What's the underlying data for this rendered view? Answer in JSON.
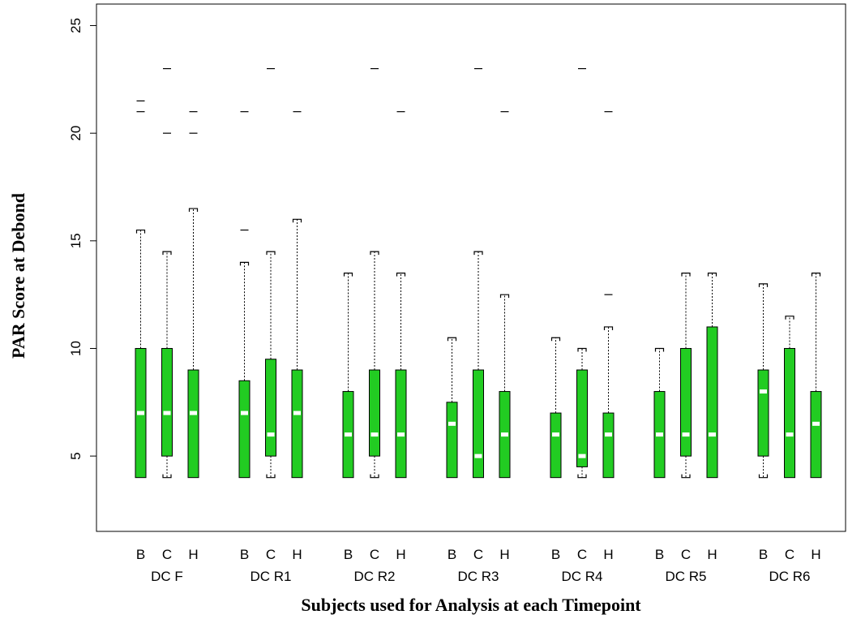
{
  "chart_data": {
    "type": "boxplot",
    "xlabel": "Subjects used for Analysis at each Timepoint",
    "ylabel": "PAR Score at Debond",
    "ylim": [
      1.5,
      26
    ],
    "yticks": [
      5,
      10,
      15,
      20,
      25
    ],
    "subgroups": [
      "B",
      "C",
      "H"
    ],
    "box_color": "#22cc22",
    "median_color": "#ffffff",
    "groups": [
      {
        "label": "DC F",
        "boxes": [
          {
            "sub": "B",
            "q1": 4,
            "median": 7,
            "q3": 10,
            "whisker_low": 4,
            "whisker_high": 15.5,
            "outliers": [
              21,
              21.5
            ]
          },
          {
            "sub": "C",
            "q1": 5,
            "median": 7,
            "q3": 10,
            "whisker_low": 4,
            "whisker_high": 14.5,
            "outliers": [
              20,
              23
            ]
          },
          {
            "sub": "H",
            "q1": 4,
            "median": 7,
            "q3": 9,
            "whisker_low": 4,
            "whisker_high": 16.5,
            "outliers": [
              20,
              21
            ]
          }
        ]
      },
      {
        "label": "DC R1",
        "boxes": [
          {
            "sub": "B",
            "q1": 4,
            "median": 7,
            "q3": 8.5,
            "whisker_low": 4,
            "whisker_high": 14,
            "outliers": [
              15.5,
              21
            ]
          },
          {
            "sub": "C",
            "q1": 5,
            "median": 6,
            "q3": 9.5,
            "whisker_low": 4,
            "whisker_high": 14.5,
            "outliers": [
              23
            ]
          },
          {
            "sub": "H",
            "q1": 4,
            "median": 7,
            "q3": 9,
            "whisker_low": 4,
            "whisker_high": 16,
            "outliers": [
              21
            ]
          }
        ]
      },
      {
        "label": "DC R2",
        "boxes": [
          {
            "sub": "B",
            "q1": 4,
            "median": 6,
            "q3": 8,
            "whisker_low": 4,
            "whisker_high": 13.5,
            "outliers": []
          },
          {
            "sub": "C",
            "q1": 5,
            "median": 6,
            "q3": 9,
            "whisker_low": 4,
            "whisker_high": 14.5,
            "outliers": [
              23
            ]
          },
          {
            "sub": "H",
            "q1": 4,
            "median": 6,
            "q3": 9,
            "whisker_low": 4,
            "whisker_high": 13.5,
            "outliers": [
              21
            ]
          }
        ]
      },
      {
        "label": "DC R3",
        "boxes": [
          {
            "sub": "B",
            "q1": 4,
            "median": 6.5,
            "q3": 7.5,
            "whisker_low": 4,
            "whisker_high": 10.5,
            "outliers": []
          },
          {
            "sub": "C",
            "q1": 4,
            "median": 5,
            "q3": 9,
            "whisker_low": 4,
            "whisker_high": 14.5,
            "outliers": [
              23
            ]
          },
          {
            "sub": "H",
            "q1": 4,
            "median": 6,
            "q3": 8,
            "whisker_low": 4,
            "whisker_high": 12.5,
            "outliers": [
              21
            ]
          }
        ]
      },
      {
        "label": "DC R4",
        "boxes": [
          {
            "sub": "B",
            "q1": 4,
            "median": 6,
            "q3": 7,
            "whisker_low": 4,
            "whisker_high": 10.5,
            "outliers": []
          },
          {
            "sub": "C",
            "q1": 4.5,
            "median": 5,
            "q3": 9,
            "whisker_low": 4,
            "whisker_high": 10,
            "outliers": [
              23
            ]
          },
          {
            "sub": "H",
            "q1": 4,
            "median": 6,
            "q3": 7,
            "whisker_low": 4,
            "whisker_high": 11,
            "outliers": [
              12.5,
              21
            ]
          }
        ]
      },
      {
        "label": "DC R5",
        "boxes": [
          {
            "sub": "B",
            "q1": 4,
            "median": 6,
            "q3": 8,
            "whisker_low": 4,
            "whisker_high": 10,
            "outliers": []
          },
          {
            "sub": "C",
            "q1": 5,
            "median": 6,
            "q3": 10,
            "whisker_low": 4,
            "whisker_high": 13.5,
            "outliers": []
          },
          {
            "sub": "H",
            "q1": 4,
            "median": 6,
            "q3": 11,
            "whisker_low": 4,
            "whisker_high": 13.5,
            "outliers": []
          }
        ]
      },
      {
        "label": "DC R6",
        "boxes": [
          {
            "sub": "B",
            "q1": 5,
            "median": 8,
            "q3": 9,
            "whisker_low": 4,
            "whisker_high": 13,
            "outliers": []
          },
          {
            "sub": "C",
            "q1": 4,
            "median": 6,
            "q3": 10,
            "whisker_low": 4,
            "whisker_high": 11.5,
            "outliers": []
          },
          {
            "sub": "H",
            "q1": 4,
            "median": 6.5,
            "q3": 8,
            "whisker_low": 4,
            "whisker_high": 13.5,
            "outliers": []
          }
        ]
      }
    ]
  }
}
